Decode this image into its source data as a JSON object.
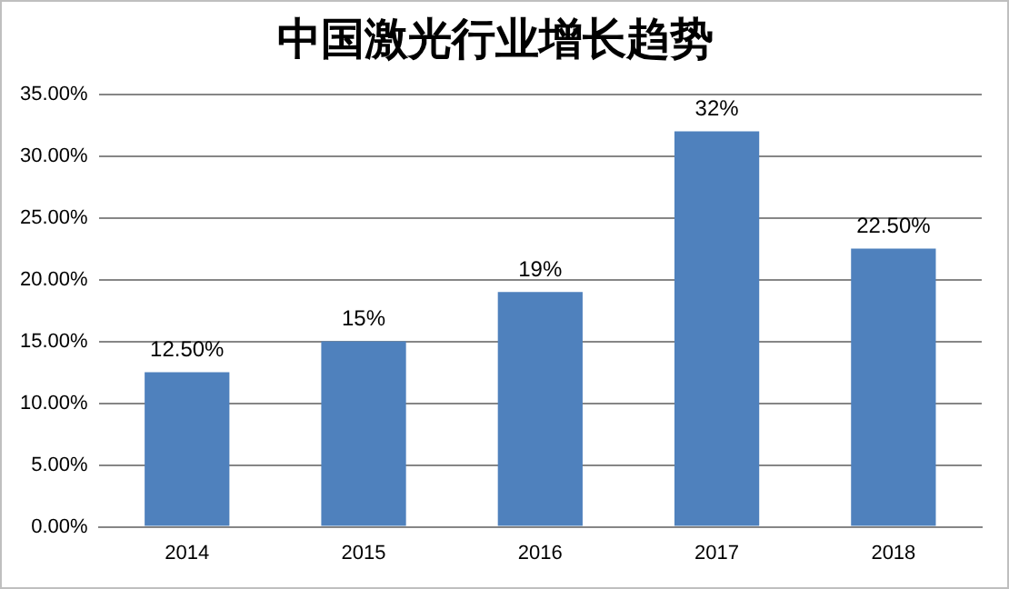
{
  "chart_data": {
    "type": "bar",
    "title": "中国激光行业增长趋势",
    "categories": [
      "2014",
      "2015",
      "2016",
      "2017",
      "2018"
    ],
    "values": [
      12.5,
      15,
      19,
      32,
      22.5
    ],
    "value_labels": [
      "12.50%",
      "15%",
      "19%",
      "32%",
      "22.50%"
    ],
    "color": "#4f81bd",
    "ylim": [
      0,
      35
    ],
    "yticks": [
      {
        "value": 0,
        "label": "0.00%"
      },
      {
        "value": 5,
        "label": "5.00%"
      },
      {
        "value": 10,
        "label": "10.00%"
      },
      {
        "value": 15,
        "label": "15.00%"
      },
      {
        "value": 20,
        "label": "20.00%"
      },
      {
        "value": 25,
        "label": "25.00%"
      },
      {
        "value": 30,
        "label": "30.00%"
      },
      {
        "value": 35,
        "label": "35.00%"
      }
    ],
    "grid": "y"
  }
}
